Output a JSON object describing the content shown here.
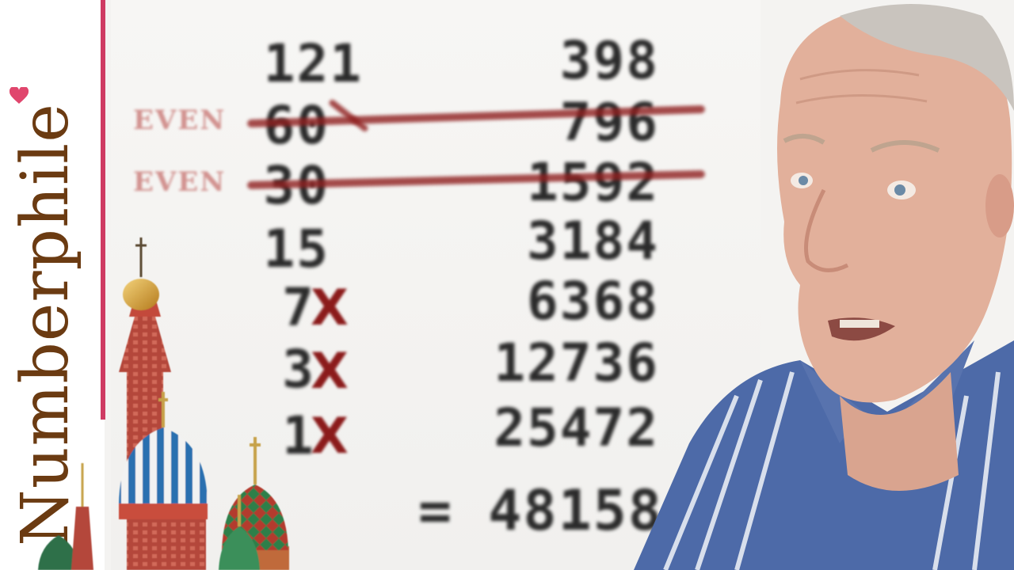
{
  "brand": {
    "name": "Numberphile",
    "accent_color": "#cf3b63",
    "text_color": "#6b3b12"
  },
  "board": {
    "left_column": [
      "121",
      "60",
      "30",
      "15",
      "7",
      "3",
      "1"
    ],
    "right_column": [
      "398",
      "796",
      "1592",
      "3184",
      "6368",
      "12736",
      "25472"
    ],
    "even_label": "EVEN",
    "cross_mark": "X",
    "result": "= 48158"
  },
  "colors": {
    "strike": "#8f1f1f",
    "digits": "#2b2b2b"
  }
}
